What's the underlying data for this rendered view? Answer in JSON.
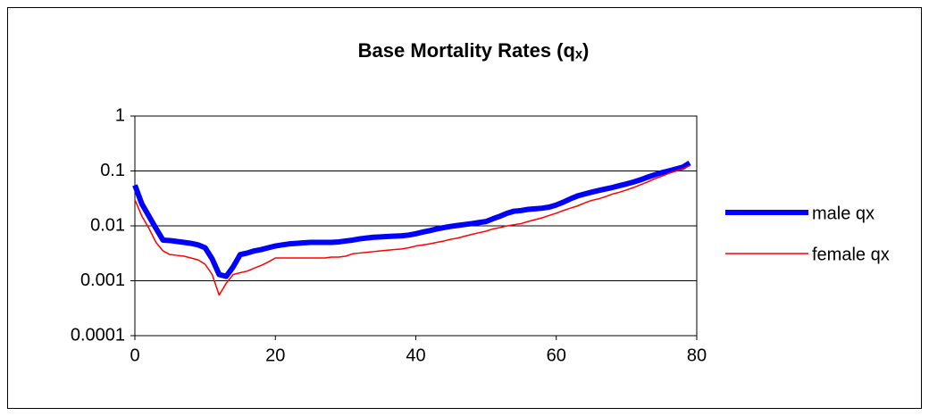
{
  "chart_data": {
    "type": "line",
    "title": "Base Mortality Rates (qₓ)",
    "x": [
      0,
      1,
      2,
      3,
      4,
      5,
      6,
      7,
      8,
      9,
      10,
      11,
      12,
      13,
      14,
      15,
      16,
      17,
      18,
      19,
      20,
      21,
      22,
      23,
      24,
      25,
      26,
      27,
      28,
      29,
      30,
      31,
      32,
      33,
      34,
      35,
      36,
      37,
      38,
      39,
      40,
      41,
      42,
      43,
      44,
      45,
      46,
      47,
      48,
      49,
      50,
      51,
      52,
      53,
      54,
      55,
      56,
      57,
      58,
      59,
      60,
      61,
      62,
      63,
      64,
      65,
      66,
      67,
      68,
      69,
      70,
      71,
      72,
      73,
      74,
      75,
      76,
      77,
      78,
      79
    ],
    "series": [
      {
        "name": "male qx",
        "color": "#0000ff",
        "width": 6,
        "values": [
          0.055,
          0.025,
          0.015,
          0.009,
          0.0055,
          0.0054,
          0.0052,
          0.005,
          0.0048,
          0.0045,
          0.004,
          0.0025,
          0.0013,
          0.0012,
          0.0018,
          0.003,
          0.0032,
          0.0035,
          0.0037,
          0.004,
          0.0043,
          0.0045,
          0.0047,
          0.0048,
          0.0049,
          0.005,
          0.005,
          0.005,
          0.005,
          0.0051,
          0.0053,
          0.0055,
          0.0058,
          0.006,
          0.0062,
          0.0063,
          0.0064,
          0.0065,
          0.0066,
          0.0068,
          0.0072,
          0.0077,
          0.0082,
          0.0088,
          0.0093,
          0.0098,
          0.0102,
          0.0106,
          0.011,
          0.0115,
          0.012,
          0.0135,
          0.015,
          0.017,
          0.0185,
          0.019,
          0.02,
          0.0205,
          0.021,
          0.022,
          0.024,
          0.027,
          0.031,
          0.035,
          0.038,
          0.041,
          0.044,
          0.047,
          0.05,
          0.054,
          0.058,
          0.063,
          0.069,
          0.077,
          0.085,
          0.093,
          0.1,
          0.108,
          0.117,
          0.14
        ]
      },
      {
        "name": "female qx",
        "color": "#ff0000",
        "width": 1.5,
        "values": [
          0.03,
          0.015,
          0.009,
          0.005,
          0.0035,
          0.003,
          0.0029,
          0.0028,
          0.0026,
          0.0024,
          0.002,
          0.0013,
          0.00055,
          0.0009,
          0.0013,
          0.0014,
          0.0015,
          0.0017,
          0.0019,
          0.0022,
          0.0026,
          0.0026,
          0.0026,
          0.0026,
          0.0026,
          0.0026,
          0.0026,
          0.0026,
          0.0027,
          0.0027,
          0.0028,
          0.0031,
          0.0032,
          0.0033,
          0.0034,
          0.0035,
          0.0036,
          0.0037,
          0.0038,
          0.004,
          0.0043,
          0.0045,
          0.0047,
          0.005,
          0.0053,
          0.0057,
          0.006,
          0.0065,
          0.007,
          0.0075,
          0.008,
          0.0088,
          0.0093,
          0.01,
          0.0105,
          0.011,
          0.012,
          0.013,
          0.014,
          0.0155,
          0.017,
          0.019,
          0.021,
          0.023,
          0.026,
          0.029,
          0.031,
          0.034,
          0.038,
          0.041,
          0.045,
          0.05,
          0.056,
          0.063,
          0.072,
          0.08,
          0.09,
          0.1,
          0.11,
          0.125
        ]
      }
    ],
    "xlim": [
      0,
      80
    ],
    "xticks": [
      0,
      20,
      40,
      60,
      80
    ],
    "ylim": [
      0.0001,
      1
    ],
    "yticks": [
      0.0001,
      0.001,
      0.01,
      0.1,
      1
    ],
    "log_y": true,
    "grid": true,
    "legend": "right"
  }
}
